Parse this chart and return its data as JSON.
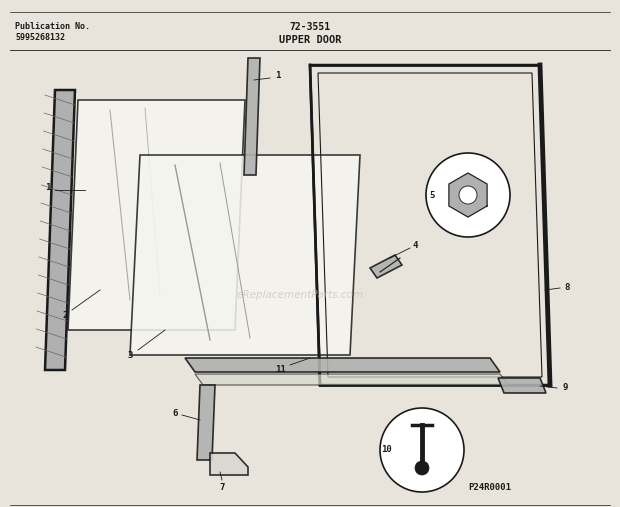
{
  "title_center": "72-3551",
  "title_sub": "UPPER DOOR",
  "pub_no_label": "Publication No.",
  "pub_no_value": "5995268132",
  "footer": "P24R0001",
  "watermark": "eReplacementParts.com",
  "bg_color": "#e8e4dc",
  "line_color": "#1a1a1a",
  "gray_fill": "#b0b0b0",
  "light_fill": "#d8d8d0",
  "white_fill": "#f5f5f0"
}
